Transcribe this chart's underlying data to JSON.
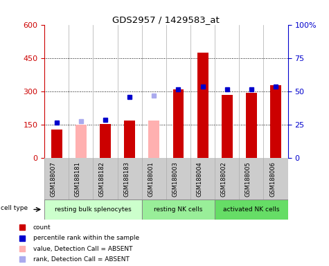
{
  "title": "GDS2957 / 1429583_at",
  "samples": [
    "GSM188007",
    "GSM188181",
    "GSM188182",
    "GSM188183",
    "GSM188001",
    "GSM188003",
    "GSM188004",
    "GSM188002",
    "GSM188005",
    "GSM188006"
  ],
  "count_values": [
    130,
    150,
    155,
    170,
    170,
    310,
    475,
    285,
    295,
    330
  ],
  "count_absent": [
    false,
    true,
    false,
    false,
    true,
    false,
    false,
    false,
    false,
    false
  ],
  "percentile_rank": [
    27,
    28,
    29,
    46,
    47,
    52,
    54,
    52,
    52,
    54
  ],
  "percentile_absent": [
    false,
    true,
    false,
    false,
    true,
    false,
    false,
    false,
    false,
    false
  ],
  "ylim_left": [
    0,
    600
  ],
  "ylim_right": [
    0,
    100
  ],
  "yticks_left": [
    0,
    150,
    300,
    450,
    600
  ],
  "yticks_right": [
    0,
    25,
    50,
    75,
    100
  ],
  "count_color": "#cc0000",
  "count_absent_color": "#ffb0b0",
  "rank_color": "#0000cc",
  "rank_absent_color": "#aaaaee",
  "bg_sample": "#cccccc",
  "cell_groups": [
    {
      "label": "resting bulk splenocytes",
      "start": 0,
      "end": 3,
      "color": "#ccffcc"
    },
    {
      "label": "resting NK cells",
      "start": 4,
      "end": 6,
      "color": "#99ee99"
    },
    {
      "label": "activated NK cells",
      "start": 7,
      "end": 9,
      "color": "#66dd66"
    }
  ],
  "legend_items": [
    {
      "label": "count",
      "color": "#cc0000"
    },
    {
      "label": "percentile rank within the sample",
      "color": "#0000cc"
    },
    {
      "label": "value, Detection Call = ABSENT",
      "color": "#ffb0b0"
    },
    {
      "label": "rank, Detection Call = ABSENT",
      "color": "#aaaaee"
    }
  ]
}
